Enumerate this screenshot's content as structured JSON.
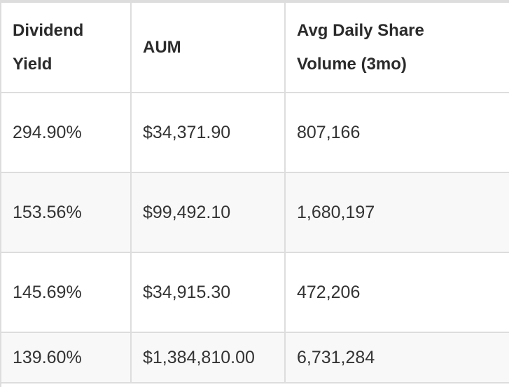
{
  "table": {
    "headers": [
      {
        "line1": "Dividend",
        "line2": "Yield"
      },
      {
        "line1": "AUM",
        "line2": ""
      },
      {
        "line1": "Avg Daily Share",
        "line2": "Volume (3mo)"
      }
    ],
    "rows": [
      {
        "dividend_yield": "294.90%",
        "aum": "$34,371.90",
        "avg_volume": "807,166"
      },
      {
        "dividend_yield": "153.56%",
        "aum": "$99,492.10",
        "avg_volume": "1,680,197"
      },
      {
        "dividend_yield": "145.69%",
        "aum": "$34,915.30",
        "avg_volume": "472,206"
      },
      {
        "dividend_yield": "139.60%",
        "aum": "$1,384,810.00",
        "avg_volume": "6,731,284"
      }
    ]
  }
}
